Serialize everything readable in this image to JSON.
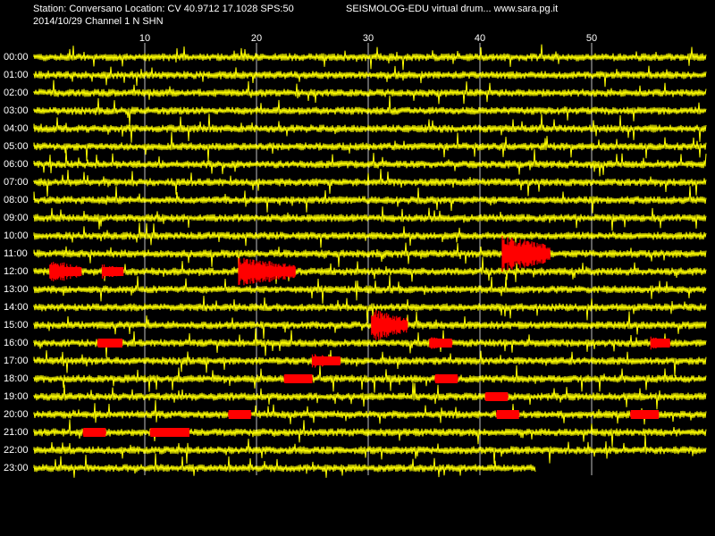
{
  "header": {
    "station_line": "Station: Conversano Location: CV 40.9712 17.1028 SPS:50",
    "site_line": "SEISMOLOG-EDU virtual drum... www.sara.pg.it",
    "date_line": "2014/10/29  Channel 1 N SHN"
  },
  "colors": {
    "background": "#000000",
    "trace": "#ffff00",
    "event": "#ff0000",
    "gridline": "#ffffff"
  },
  "minute_ticks": [
    "10",
    "20",
    "30",
    "40",
    "50"
  ],
  "hours": [
    "00:00",
    "01:00",
    "02:00",
    "03:00",
    "04:00",
    "05:00",
    "06:00",
    "07:00",
    "08:00",
    "09:00",
    "10:00",
    "11:00",
    "12:00",
    "13:00",
    "14:00",
    "15:00",
    "16:00",
    "17:00",
    "18:00",
    "19:00",
    "20:00",
    "21:00",
    "22:00",
    "23:00"
  ],
  "record_end_minute": 45,
  "events": [
    {
      "hour": 12,
      "start_min": 1.5,
      "end_min": 4.3,
      "amp": 1.0
    },
    {
      "hour": 12,
      "start_min": 6.2,
      "end_min": 8.1,
      "amp": 0.6
    },
    {
      "hour": 12,
      "start_min": 18.4,
      "end_min": 23.5,
      "amp": 1.2
    },
    {
      "hour": 11,
      "start_min": 42.0,
      "end_min": 46.3,
      "amp": 1.5
    },
    {
      "hour": 15,
      "start_min": 30.3,
      "end_min": 33.5,
      "amp": 1.3
    },
    {
      "hour": 16,
      "start_min": 5.8,
      "end_min": 8.0,
      "amp": 0.4
    },
    {
      "hour": 16,
      "start_min": 35.5,
      "end_min": 37.5,
      "amp": 0.5
    },
    {
      "hour": 16,
      "start_min": 55.3,
      "end_min": 57.0,
      "amp": 0.6
    },
    {
      "hour": 17,
      "start_min": 25.0,
      "end_min": 27.5,
      "amp": 0.6
    },
    {
      "hour": 18,
      "start_min": 22.5,
      "end_min": 25.0,
      "amp": 0.4
    },
    {
      "hour": 18,
      "start_min": 36.0,
      "end_min": 38.0,
      "amp": 0.4
    },
    {
      "hour": 19,
      "start_min": 40.5,
      "end_min": 42.5,
      "amp": 0.4
    },
    {
      "hour": 20,
      "start_min": 17.5,
      "end_min": 19.5,
      "amp": 0.3
    },
    {
      "hour": 20,
      "start_min": 41.5,
      "end_min": 43.5,
      "amp": 0.3
    },
    {
      "hour": 20,
      "start_min": 53.5,
      "end_min": 56.0,
      "amp": 0.3
    },
    {
      "hour": 21,
      "start_min": 4.5,
      "end_min": 6.5,
      "amp": 0.4
    },
    {
      "hour": 21,
      "start_min": 10.5,
      "end_min": 14.0,
      "amp": 0.4
    }
  ]
}
